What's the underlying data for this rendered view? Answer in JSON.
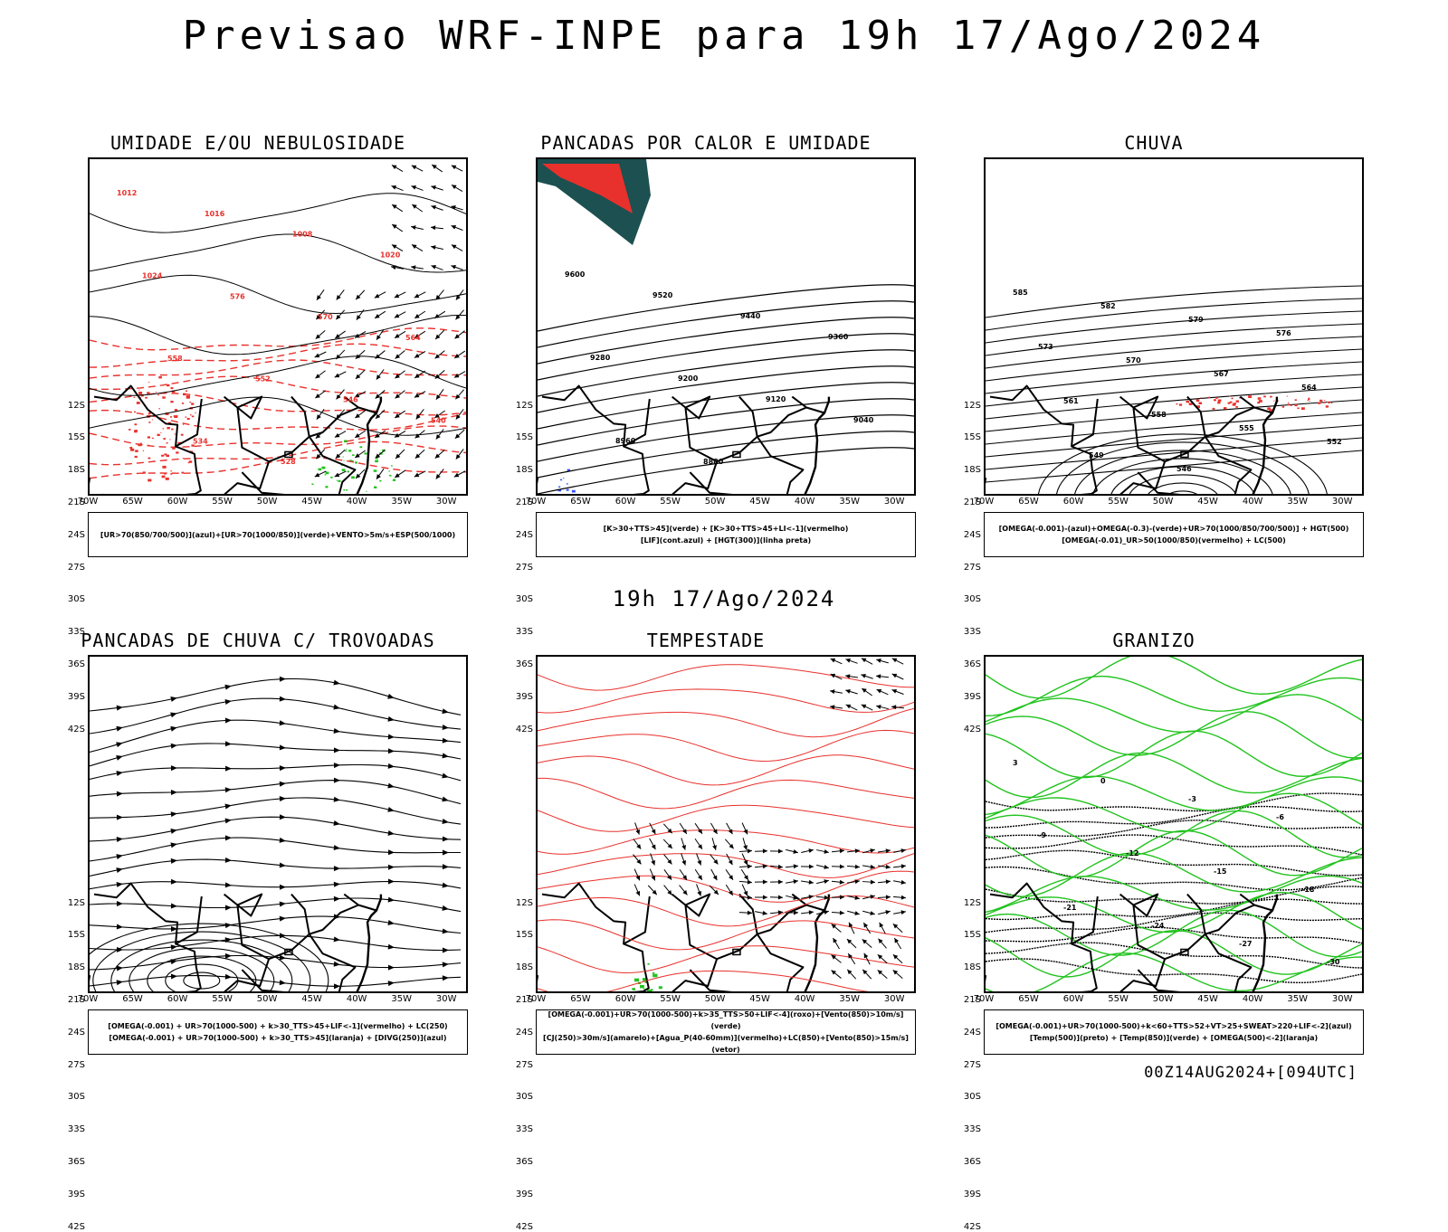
{
  "header": {
    "title": "Previsao WRF-INPE  para 19h 17/Ago/2024",
    "subtitle": "19h 17/Ago/2024",
    "footer": "00Z14AUG2024+[094UTC]"
  },
  "axes": {
    "lat_labels": [
      "12S",
      "15S",
      "18S",
      "21S",
      "24S",
      "27S",
      "30S",
      "33S",
      "36S",
      "39S",
      "42S"
    ],
    "lon_labels": [
      "70W",
      "65W",
      "60W",
      "55W",
      "50W",
      "45W",
      "40W",
      "35W",
      "30W"
    ]
  },
  "panels": [
    {
      "id": "umidade",
      "title": "UMIDADE E/OU NEBULOSIDADE",
      "legend": [
        "[UR>70(850/700/500)](azul)+[UR>70(1000/850)](verde)+VENTO>5m/s+ESP(500/1000)"
      ],
      "labels": [
        "1012",
        "1016",
        "1008",
        "1020",
        "1024",
        "576",
        "570",
        "564",
        "558",
        "552",
        "546",
        "540",
        "534",
        "528"
      ]
    },
    {
      "id": "pancadas-calor",
      "title": "PANCADAS POR CALOR E UMIDADE",
      "legend": [
        "[K>30+TTS>45](verde) + [K>30+TTS>45+LI<-1](vermelho)",
        "[LIF](cont.azul) + [HGT(300)](linha preta)"
      ],
      "labels": [
        "9600",
        "9520",
        "9440",
        "9360",
        "9280",
        "9200",
        "9120",
        "9040",
        "8960",
        "8880"
      ]
    },
    {
      "id": "chuva",
      "title": "CHUVA",
      "legend": [
        "[OMEGA(-0.001)-(azul)+OMEGA(-0.3)-(verde)+UR>70(1000/850/700/500)] + HGT(500)",
        "[OMEGA(-0.01)_UR>50(1000/850)(vermelho) + LC(500)"
      ],
      "labels": [
        "585",
        "582",
        "579",
        "576",
        "573",
        "570",
        "567",
        "564",
        "561",
        "558",
        "555",
        "552",
        "549",
        "546"
      ]
    },
    {
      "id": "trovoadas",
      "title": "PANCADAS DE CHUVA C/ TROVOADAS",
      "legend": [
        "[OMEGA(-0.001) + UR>70(1000-500) + k>30_TTS>45+LIF<-1](vermelho) + LC(250)",
        "[OMEGA(-0.001) + UR>70(1000-500) + k>30_TTS>45](laranja) + [DIVG(250)](azul)"
      ],
      "labels": []
    },
    {
      "id": "tempestade",
      "title": "TEMPESTADE",
      "legend": [
        "[OMEGA(-0.001)+UR>70(1000-500)+k>35_TTS>50+LIF<-4](roxo)+[Vento(850)>10m/s](verde)",
        "[CJ(250)>30m/s](amarelo)+[Agua_P(40-60mm)](vermelho)+LC(850)+[Vento(850)>15m/s](vetor)"
      ],
      "labels": []
    },
    {
      "id": "granizo",
      "title": "GRANIZO",
      "legend": [
        "[OMEGA(-0.001)+UR>70(1000-500)+k<60+TTS>52+VT>25+SWEAT>220+LIF<-2](azul)",
        "[Temp(500)](preto) + [Temp(850)](verde) + [OMEGA(500)<-2](laranja)"
      ],
      "labels": [
        "3",
        "0",
        "-3",
        "-6",
        "-9",
        "-12",
        "-15",
        "-18",
        "-21",
        "-24",
        "-27",
        "-30"
      ]
    }
  ],
  "colors": {
    "red": "#e8312c",
    "green": "#22c31e",
    "blue": "#3050ff",
    "lavender": "#a5a8f0",
    "yellow": "#e8dc32",
    "teal": "#1d5050",
    "orange": "#f07a1e",
    "pink": "#f5a0a0"
  }
}
